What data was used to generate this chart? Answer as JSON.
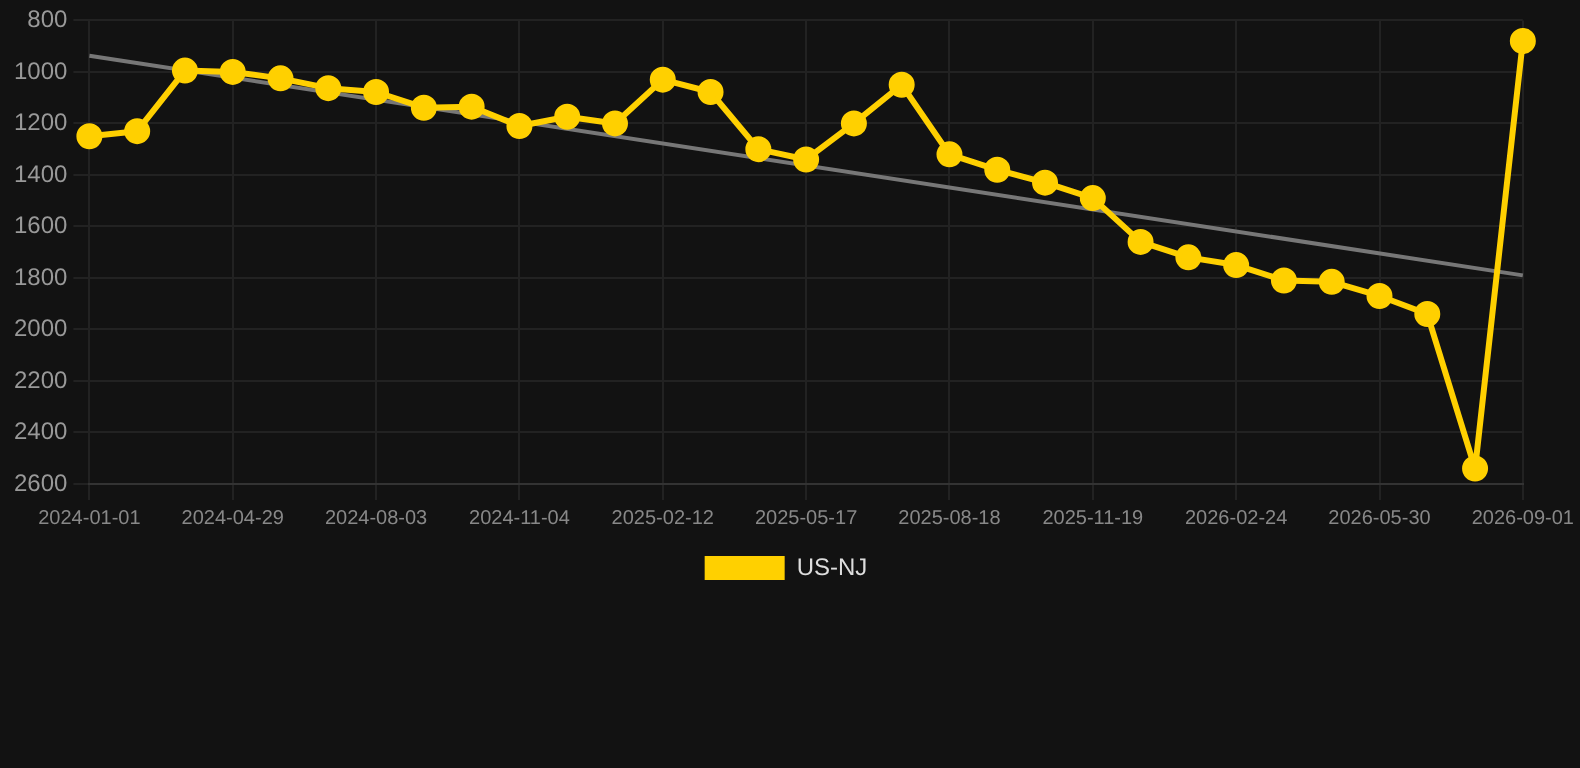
{
  "chart_data": {
    "type": "line",
    "categories": [
      "2024-01-01",
      null,
      null,
      "2024-04-29",
      null,
      null,
      "2024-08-03",
      null,
      null,
      "2024-11-04",
      null,
      null,
      "2025-02-12",
      null,
      null,
      "2025-05-17",
      null,
      null,
      "2025-08-18",
      null,
      null,
      "2025-11-19",
      null,
      null,
      "2026-02-24",
      null,
      null,
      "2026-05-30",
      null,
      null,
      "2026-09-01"
    ],
    "series": [
      {
        "name": "US-NJ",
        "color": "#ffd000",
        "values": [
          1250,
          1230,
          995,
          1000,
          1025,
          1063,
          1078,
          1139,
          1135,
          1210,
          1174,
          1200,
          1030,
          1078,
          1300,
          1340,
          1200,
          1050,
          1320,
          1380,
          1430,
          1490,
          1660,
          1720,
          1750,
          1810,
          1815,
          1870,
          1940,
          2540,
          880
        ]
      },
      {
        "type": "line",
        "color": "#777777",
        "marker": "none",
        "values": [
          937,
          null,
          null,
          null,
          null,
          null,
          null,
          null,
          null,
          null,
          null,
          null,
          null,
          null,
          null,
          null,
          null,
          null,
          null,
          null,
          null,
          null,
          null,
          null,
          null,
          null,
          null,
          null,
          null,
          null,
          1790
        ]
      }
    ],
    "ylim": [
      2600,
      800
    ],
    "yticks": [
      800,
      1000,
      1200,
      1400,
      1600,
      1800,
      2000,
      2200,
      2400,
      2600
    ],
    "grid": true,
    "legend": "bottom",
    "marker": "circle",
    "line_style": "solid"
  }
}
